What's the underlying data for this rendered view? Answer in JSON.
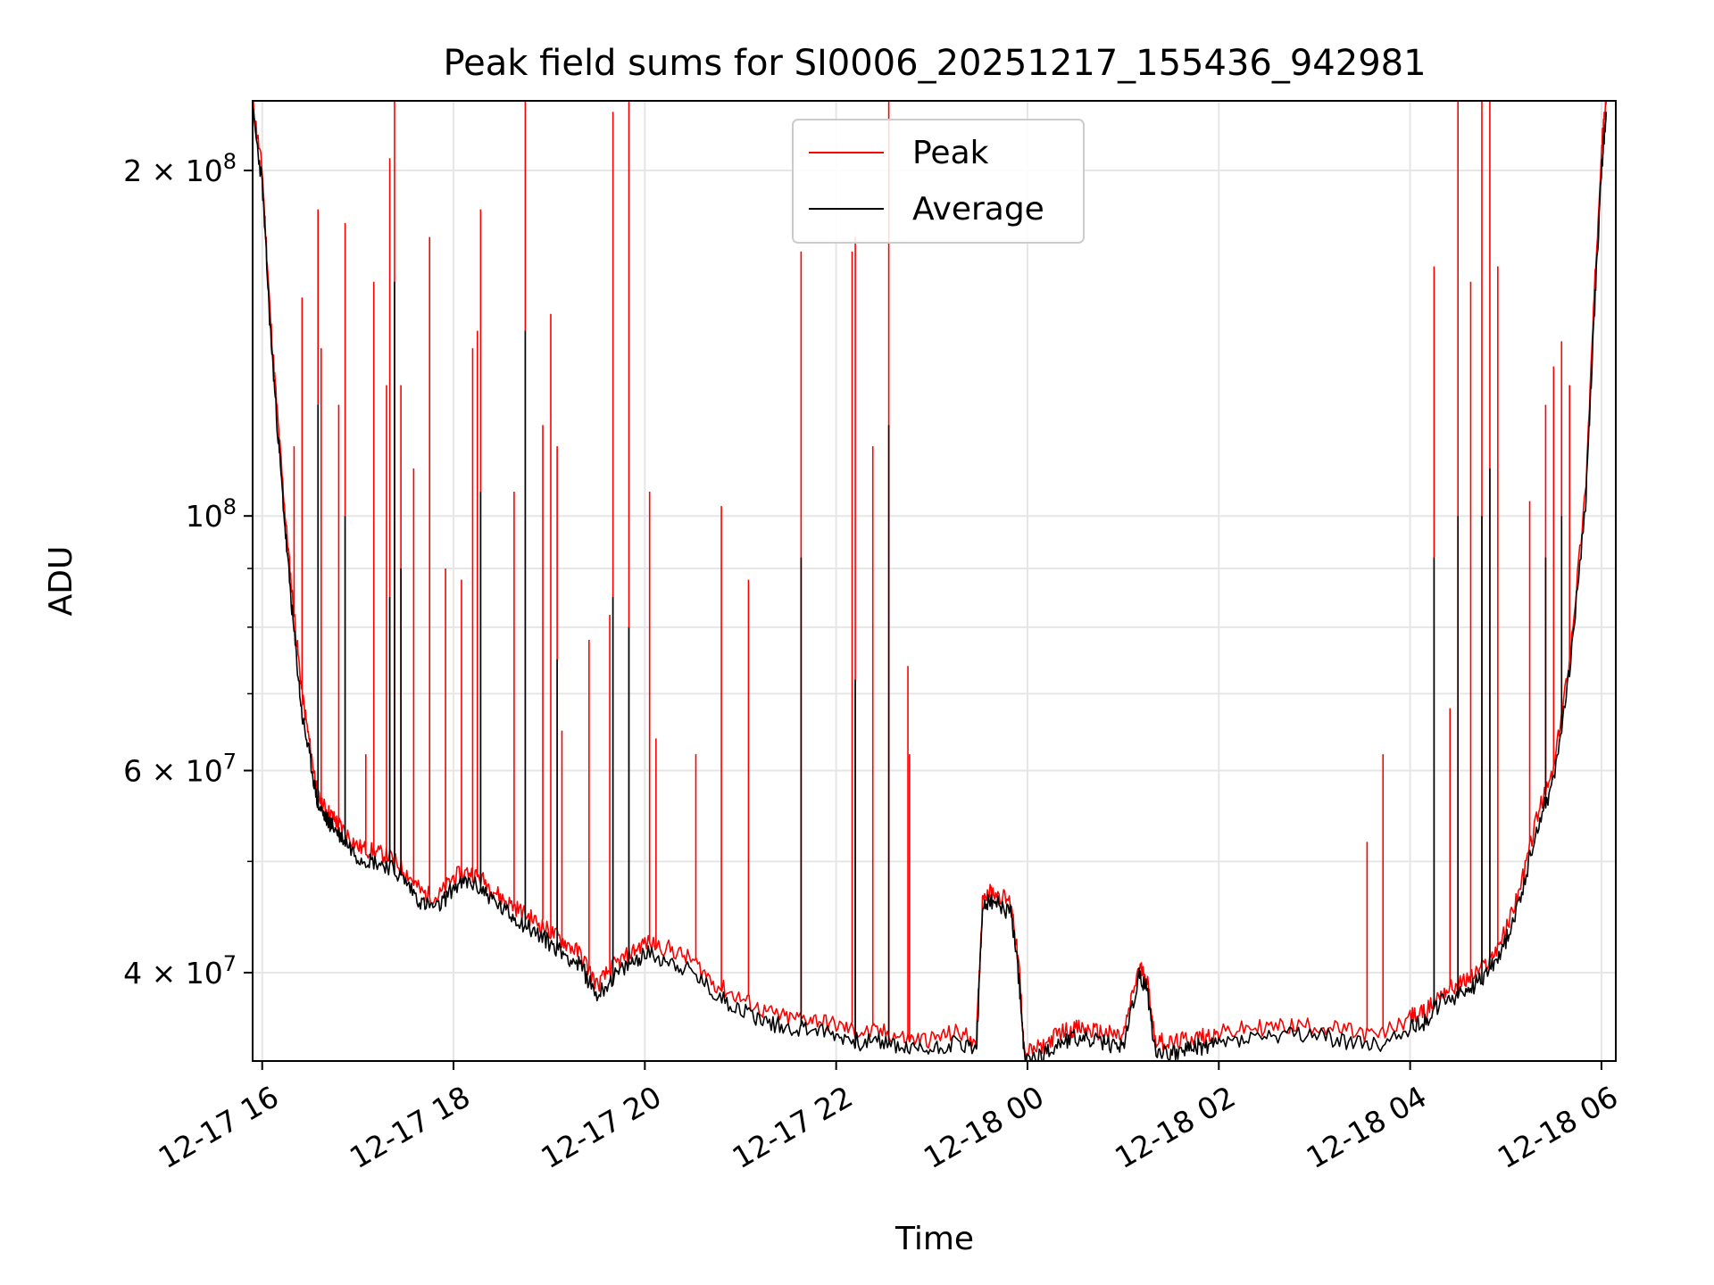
{
  "chart_data": {
    "type": "line",
    "title": "Peak field sums for SI0006_20251217_155436_942981",
    "xlabel": "Time",
    "ylabel": "ADU",
    "y_scale": "log",
    "ylim": [
      33500000,
      230000000
    ],
    "xlim": [
      "2025-12-17 15:54",
      "2025-12-18 06:09"
    ],
    "grid": true,
    "legend_position": "top-center",
    "x_ticks": [
      {
        "value": "2025-12-17 16:00",
        "label": "12-17 16"
      },
      {
        "value": "2025-12-17 18:00",
        "label": "12-17 18"
      },
      {
        "value": "2025-12-17 20:00",
        "label": "12-17 20"
      },
      {
        "value": "2025-12-17 22:00",
        "label": "12-17 22"
      },
      {
        "value": "2025-12-18 00:00",
        "label": "12-18 00"
      },
      {
        "value": "2025-12-18 02:00",
        "label": "12-18 02"
      },
      {
        "value": "2025-12-18 04:00",
        "label": "12-18 04"
      },
      {
        "value": "2025-12-18 06:00",
        "label": "12-18 06"
      }
    ],
    "y_ticks": [
      {
        "value": 40000000,
        "mant": "4",
        "exp": "7"
      },
      {
        "value": 60000000,
        "mant": "6",
        "exp": "7"
      },
      {
        "value": 100000000,
        "mant": "",
        "exp": "8"
      },
      {
        "value": 200000000,
        "mant": "2",
        "exp": "8"
      }
    ],
    "y_minor_ticks": [
      50000000,
      70000000,
      80000000,
      90000000
    ],
    "series": [
      {
        "name": "Peak",
        "color": "#ff0000",
        "x": [
          "2025-12-17 15:54",
          "2025-12-17 16:00",
          "2025-12-17 16:05",
          "2025-12-17 16:10",
          "2025-12-17 16:15",
          "2025-12-17 16:20",
          "2025-12-17 16:25",
          "2025-12-17 16:30",
          "2025-12-17 16:35",
          "2025-12-17 16:40",
          "2025-12-17 16:45",
          "2025-12-17 16:50",
          "2025-12-17 17:00",
          "2025-12-17 17:10",
          "2025-12-17 17:20",
          "2025-12-17 17:30",
          "2025-12-17 17:40",
          "2025-12-17 17:50",
          "2025-12-17 18:00",
          "2025-12-17 18:10",
          "2025-12-17 18:20",
          "2025-12-17 18:30",
          "2025-12-17 18:40",
          "2025-12-17 18:50",
          "2025-12-17 19:00",
          "2025-12-17 19:10",
          "2025-12-17 19:20",
          "2025-12-17 19:30",
          "2025-12-17 19:40",
          "2025-12-17 19:50",
          "2025-12-17 20:00",
          "2025-12-17 20:15",
          "2025-12-17 20:30",
          "2025-12-17 20:45",
          "2025-12-17 21:00",
          "2025-12-17 21:15",
          "2025-12-17 21:30",
          "2025-12-17 21:45",
          "2025-12-17 22:00",
          "2025-12-17 22:15",
          "2025-12-17 22:30",
          "2025-12-17 22:45",
          "2025-12-17 23:00",
          "2025-12-17 23:15",
          "2025-12-17 23:28",
          "2025-12-17 23:32",
          "2025-12-17 23:40",
          "2025-12-17 23:50",
          "2025-12-17 23:55",
          "2025-12-17 23:58",
          "2025-12-18 00:10",
          "2025-12-18 00:20",
          "2025-12-18 00:30",
          "2025-12-18 00:40",
          "2025-12-18 00:50",
          "2025-12-18 01:00",
          "2025-12-18 01:10",
          "2025-12-18 01:15",
          "2025-12-18 01:20",
          "2025-12-18 01:30",
          "2025-12-18 01:40",
          "2025-12-18 01:50",
          "2025-12-18 02:00",
          "2025-12-18 02:20",
          "2025-12-18 02:40",
          "2025-12-18 03:00",
          "2025-12-18 03:20",
          "2025-12-18 03:40",
          "2025-12-18 04:00",
          "2025-12-18 04:10",
          "2025-12-18 04:20",
          "2025-12-18 04:30",
          "2025-12-18 04:40",
          "2025-12-18 04:50",
          "2025-12-18 05:00",
          "2025-12-18 05:10",
          "2025-12-18 05:20",
          "2025-12-18 05:30",
          "2025-12-18 05:40",
          "2025-12-18 05:50",
          "2025-12-18 05:55",
          "2025-12-18 06:00",
          "2025-12-18 06:03"
        ],
        "y": [
          230000000,
          200000000,
          150000000,
          120000000,
          98000000,
          82000000,
          70000000,
          63000000,
          57000000,
          55500000,
          54500000,
          53500000,
          51500000,
          51000000,
          50500000,
          49000000,
          47000000,
          46500000,
          48500000,
          49000000,
          48000000,
          46500000,
          45500000,
          44500000,
          43500000,
          42500000,
          41500000,
          39000000,
          40500000,
          41500000,
          42500000,
          42000000,
          41000000,
          39000000,
          38000000,
          37000000,
          36500000,
          36500000,
          36000000,
          35500000,
          35500000,
          35000000,
          35000000,
          35500000,
          35000000,
          47000000,
          47000000,
          46000000,
          40000000,
          34000000,
          34500000,
          35500000,
          35800000,
          35600000,
          35400000,
          35200000,
          40500000,
          39500000,
          35000000,
          34700000,
          35000000,
          35200000,
          35400000,
          35800000,
          35900000,
          36000000,
          35600000,
          35200000,
          36600000,
          37000000,
          38500000,
          39000000,
          39800000,
          41000000,
          43500000,
          48000000,
          55000000,
          60000000,
          75000000,
          105000000,
          150000000,
          210000000,
          230000000
        ],
        "spikes": [
          [
            "2025-12-17 16:20",
            115000000
          ],
          [
            "2025-12-17 16:25",
            155000000
          ],
          [
            "2025-12-17 16:35",
            185000000
          ],
          [
            "2025-12-17 16:37",
            140000000
          ],
          [
            "2025-12-17 16:48",
            125000000
          ],
          [
            "2025-12-17 16:52",
            180000000
          ],
          [
            "2025-12-17 17:05",
            62000000
          ],
          [
            "2025-12-17 17:10",
            160000000
          ],
          [
            "2025-12-17 17:18",
            130000000
          ],
          [
            "2025-12-17 17:20",
            205000000
          ],
          [
            "2025-12-17 17:23",
            230000000
          ],
          [
            "2025-12-17 17:27",
            130000000
          ],
          [
            "2025-12-17 17:35",
            110000000
          ],
          [
            "2025-12-17 17:45",
            175000000
          ],
          [
            "2025-12-17 17:55",
            90000000
          ],
          [
            "2025-12-17 18:05",
            88000000
          ],
          [
            "2025-12-17 18:12",
            140000000
          ],
          [
            "2025-12-17 18:15",
            145000000
          ],
          [
            "2025-12-17 18:17",
            185000000
          ],
          [
            "2025-12-17 18:38",
            105000000
          ],
          [
            "2025-12-17 18:45",
            230000000
          ],
          [
            "2025-12-17 18:56",
            120000000
          ],
          [
            "2025-12-17 19:01",
            150000000
          ],
          [
            "2025-12-17 19:05",
            115000000
          ],
          [
            "2025-12-17 19:08",
            65000000
          ],
          [
            "2025-12-17 19:25",
            78000000
          ],
          [
            "2025-12-17 19:38",
            82000000
          ],
          [
            "2025-12-17 19:40",
            225000000
          ],
          [
            "2025-12-17 19:50",
            230000000
          ],
          [
            "2025-12-17 20:03",
            105000000
          ],
          [
            "2025-12-17 20:07",
            64000000
          ],
          [
            "2025-12-17 20:32",
            62000000
          ],
          [
            "2025-12-17 20:48",
            102000000
          ],
          [
            "2025-12-17 21:05",
            88000000
          ],
          [
            "2025-12-17 21:38",
            170000000
          ],
          [
            "2025-12-17 22:10",
            170000000
          ],
          [
            "2025-12-17 22:12",
            175000000
          ],
          [
            "2025-12-17 22:23",
            115000000
          ],
          [
            "2025-12-17 22:33",
            230000000
          ],
          [
            "2025-12-17 22:45",
            74000000
          ],
          [
            "2025-12-17 22:46",
            62000000
          ],
          [
            "2025-12-18 03:33",
            52000000
          ],
          [
            "2025-12-18 03:43",
            62000000
          ],
          [
            "2025-12-18 04:15",
            165000000
          ],
          [
            "2025-12-18 04:25",
            68000000
          ],
          [
            "2025-12-18 04:30",
            230000000
          ],
          [
            "2025-12-18 04:38",
            160000000
          ],
          [
            "2025-12-18 04:45",
            230000000
          ],
          [
            "2025-12-18 04:50",
            230000000
          ],
          [
            "2025-12-18 04:55",
            165000000
          ],
          [
            "2025-12-18 05:15",
            103000000
          ],
          [
            "2025-12-18 05:25",
            125000000
          ],
          [
            "2025-12-18 05:30",
            135000000
          ],
          [
            "2025-12-18 05:35",
            142000000
          ],
          [
            "2025-12-18 05:40",
            130000000
          ]
        ]
      },
      {
        "name": "Average",
        "color": "#000000",
        "x": [
          "2025-12-17 15:54",
          "2025-12-17 16:00",
          "2025-12-17 16:05",
          "2025-12-17 16:10",
          "2025-12-17 16:15",
          "2025-12-17 16:20",
          "2025-12-17 16:25",
          "2025-12-17 16:30",
          "2025-12-17 16:35",
          "2025-12-17 16:40",
          "2025-12-17 16:45",
          "2025-12-17 16:50",
          "2025-12-17 17:00",
          "2025-12-17 17:10",
          "2025-12-17 17:20",
          "2025-12-17 17:30",
          "2025-12-17 17:40",
          "2025-12-17 17:50",
          "2025-12-17 18:00",
          "2025-12-17 18:10",
          "2025-12-17 18:20",
          "2025-12-17 18:30",
          "2025-12-17 18:40",
          "2025-12-17 18:50",
          "2025-12-17 19:00",
          "2025-12-17 19:10",
          "2025-12-17 19:20",
          "2025-12-17 19:30",
          "2025-12-17 19:40",
          "2025-12-17 19:50",
          "2025-12-17 20:00",
          "2025-12-17 20:15",
          "2025-12-17 20:30",
          "2025-12-17 20:45",
          "2025-12-17 21:00",
          "2025-12-17 21:15",
          "2025-12-17 21:30",
          "2025-12-17 21:45",
          "2025-12-17 22:00",
          "2025-12-17 22:15",
          "2025-12-17 22:30",
          "2025-12-17 22:45",
          "2025-12-17 23:00",
          "2025-12-17 23:15",
          "2025-12-17 23:28",
          "2025-12-17 23:32",
          "2025-12-17 23:40",
          "2025-12-17 23:50",
          "2025-12-17 23:55",
          "2025-12-17 23:58",
          "2025-12-18 00:10",
          "2025-12-18 00:20",
          "2025-12-18 00:30",
          "2025-12-18 00:40",
          "2025-12-18 00:50",
          "2025-12-18 01:00",
          "2025-12-18 01:10",
          "2025-12-18 01:15",
          "2025-12-18 01:20",
          "2025-12-18 01:30",
          "2025-12-18 01:40",
          "2025-12-18 01:50",
          "2025-12-18 02:00",
          "2025-12-18 02:20",
          "2025-12-18 02:40",
          "2025-12-18 03:00",
          "2025-12-18 03:20",
          "2025-12-18 03:40",
          "2025-12-18 04:00",
          "2025-12-18 04:10",
          "2025-12-18 04:20",
          "2025-12-18 04:30",
          "2025-12-18 04:40",
          "2025-12-18 04:50",
          "2025-12-18 05:00",
          "2025-12-18 05:10",
          "2025-12-18 05:20",
          "2025-12-18 05:30",
          "2025-12-18 05:40",
          "2025-12-18 05:50",
          "2025-12-18 05:55",
          "2025-12-18 06:00",
          "2025-12-18 06:03"
        ],
        "y": [
          225000000,
          195000000,
          146000000,
          117000000,
          95000000,
          79000000,
          67000000,
          61500000,
          56000000,
          54500000,
          53500000,
          52500000,
          50500000,
          50000000,
          49500000,
          48000000,
          46000000,
          45500000,
          47500000,
          48000000,
          47000000,
          45500000,
          44500000,
          43500000,
          42500000,
          41500000,
          40500000,
          38200000,
          39600000,
          40600000,
          41600000,
          41000000,
          40000000,
          38200000,
          37200000,
          36300000,
          35800000,
          35800000,
          35300000,
          34800000,
          34800000,
          34300000,
          34300000,
          34800000,
          34300000,
          46000000,
          46000000,
          45000000,
          39000000,
          33700000,
          33900000,
          34800000,
          35100000,
          34900000,
          34700000,
          34500000,
          39700000,
          38700000,
          34300000,
          34000000,
          34300000,
          34500000,
          34700000,
          35100000,
          35200000,
          35300000,
          34900000,
          34500000,
          35900000,
          36300000,
          37700000,
          38200000,
          39000000,
          40200000,
          42600000,
          47000000,
          53800000,
          58800000,
          73500000,
          102000000,
          145000000,
          200000000,
          225000000
        ],
        "spikes": [
          [
            "2025-12-17 16:35",
            125000000
          ],
          [
            "2025-12-17 16:52",
            100000000
          ],
          [
            "2025-12-17 17:20",
            85000000
          ],
          [
            "2025-12-17 17:23",
            160000000
          ],
          [
            "2025-12-17 17:27",
            90000000
          ],
          [
            "2025-12-17 18:17",
            105000000
          ],
          [
            "2025-12-17 18:45",
            145000000
          ],
          [
            "2025-12-17 19:05",
            75000000
          ],
          [
            "2025-12-17 19:40",
            85000000
          ],
          [
            "2025-12-17 19:50",
            80000000
          ],
          [
            "2025-12-17 21:38",
            92000000
          ],
          [
            "2025-12-17 22:12",
            72000000
          ],
          [
            "2025-12-17 22:33",
            120000000
          ],
          [
            "2025-12-18 04:15",
            92000000
          ],
          [
            "2025-12-18 04:30",
            100000000
          ],
          [
            "2025-12-18 04:45",
            100000000
          ],
          [
            "2025-12-18 04:50",
            110000000
          ],
          [
            "2025-12-18 05:25",
            92000000
          ],
          [
            "2025-12-18 05:35",
            100000000
          ]
        ]
      }
    ]
  }
}
